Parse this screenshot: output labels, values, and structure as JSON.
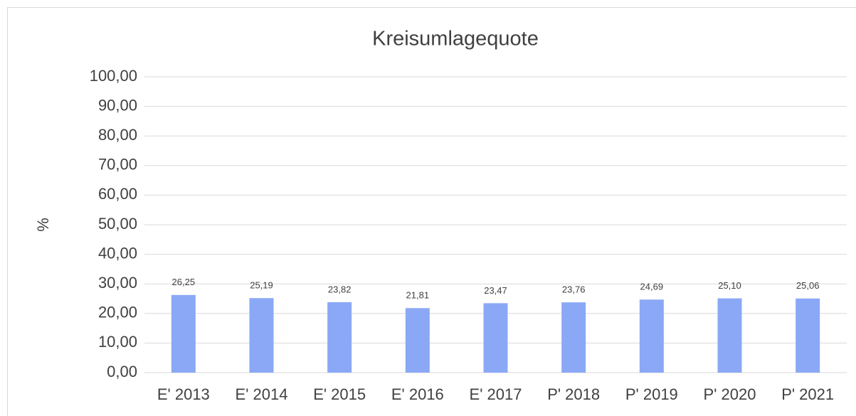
{
  "chart_data": {
    "type": "bar",
    "title": "Kreisumlagequote",
    "ylabel": "%",
    "categories": [
      "E' 2013",
      "E' 2014",
      "E' 2015",
      "E' 2016",
      "E' 2017",
      "P' 2018",
      "P' 2019",
      "P' 2020",
      "P' 2021"
    ],
    "values": [
      26.25,
      25.19,
      23.82,
      21.81,
      23.47,
      23.76,
      24.69,
      25.1,
      25.06
    ],
    "value_labels": [
      "26,25",
      "25,19",
      "23,82",
      "21,81",
      "23,47",
      "23,76",
      "24,69",
      "25,10",
      "25,06"
    ],
    "color": "#8ba8f6",
    "ylim": [
      0,
      100
    ],
    "yticks": [
      {
        "value": 0,
        "label": "0,00"
      },
      {
        "value": 10,
        "label": "10,00"
      },
      {
        "value": 20,
        "label": "20,00"
      },
      {
        "value": 30,
        "label": "30,00"
      },
      {
        "value": 40,
        "label": "40,00"
      },
      {
        "value": 50,
        "label": "50,00"
      },
      {
        "value": 60,
        "label": "60,00"
      },
      {
        "value": 70,
        "label": "70,00"
      },
      {
        "value": 80,
        "label": "80,00"
      },
      {
        "value": 90,
        "label": "90,00"
      },
      {
        "value": 100,
        "label": "100,00"
      }
    ],
    "grid": true
  }
}
